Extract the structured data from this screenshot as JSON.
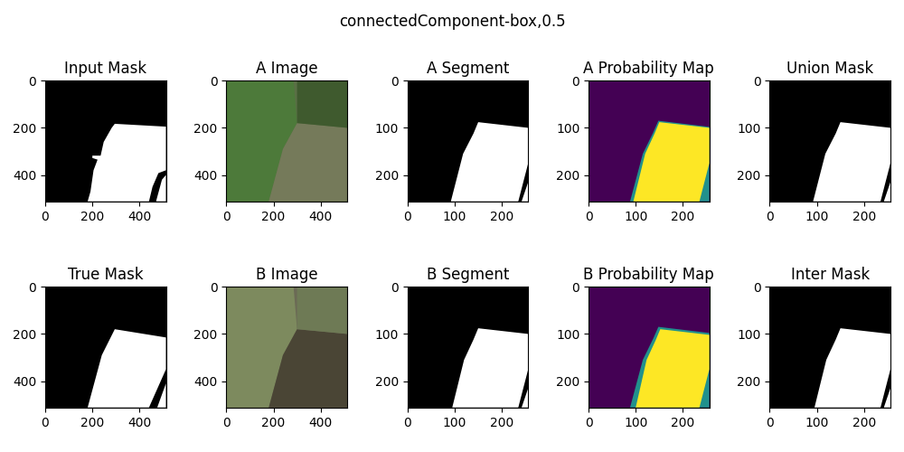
{
  "title": "connectedComponent-box,0.5",
  "chart_data": [
    {
      "type": "image",
      "title": "Input Mask",
      "color": "#000000",
      "xlim": [
        0,
        512
      ],
      "ylim": [
        512,
        0
      ],
      "xticks": [
        0,
        200,
        400
      ],
      "yticks": [
        0,
        200,
        400
      ],
      "regions": [
        {
          "color": "#ffffff",
          "points": [
            [
              295,
              183
            ],
            [
              512,
              195
            ],
            [
              512,
              380
            ],
            [
              480,
              392
            ],
            [
              455,
              450
            ],
            [
              440,
              512
            ],
            [
              180,
              512
            ],
            [
              192,
              470
            ],
            [
              205,
              380
            ],
            [
              222,
              335
            ],
            [
              200,
              328
            ],
            [
              200,
              318
            ],
            [
              235,
              318
            ],
            [
              248,
              260
            ],
            [
              282,
              200
            ]
          ]
        },
        {
          "color": "#ffffff",
          "points": [
            [
              470,
              512
            ],
            [
              495,
              420
            ],
            [
              512,
              400
            ],
            [
              512,
              512
            ]
          ]
        }
      ]
    },
    {
      "type": "image",
      "title": "A Image",
      "color": "#5a6f45",
      "xlim": [
        0,
        512
      ],
      "ylim": [
        512,
        0
      ],
      "xticks": [
        0,
        200,
        400
      ],
      "yticks": [
        0,
        200,
        400
      ],
      "regions": [
        {
          "color": "#4d7a3a",
          "points": [
            [
              0,
              0
            ],
            [
              285,
              0
            ],
            [
              300,
              180
            ],
            [
              240,
              290
            ],
            [
              180,
              512
            ],
            [
              0,
              512
            ]
          ]
        },
        {
          "color": "#757a5a",
          "points": [
            [
              300,
              180
            ],
            [
              512,
              200
            ],
            [
              512,
              512
            ],
            [
              180,
              512
            ],
            [
              240,
              290
            ]
          ]
        },
        {
          "color": "#3f5a2e",
          "points": [
            [
              300,
              0
            ],
            [
              512,
              0
            ],
            [
              512,
              200
            ],
            [
              300,
              180
            ]
          ]
        }
      ]
    },
    {
      "type": "image",
      "title": "A Segment",
      "color": "#000000",
      "xlim": [
        0,
        256
      ],
      "ylim": [
        256,
        0
      ],
      "xticks": [
        0,
        100,
        200
      ],
      "yticks": [
        0,
        100,
        200
      ],
      "regions": [
        {
          "color": "#ffffff",
          "points": [
            [
              150,
              88
            ],
            [
              256,
              100
            ],
            [
              256,
              175
            ],
            [
              235,
              256
            ],
            [
              92,
              256
            ],
            [
              118,
              155
            ],
            [
              140,
              112
            ]
          ]
        },
        {
          "color": "#ffffff",
          "points": [
            [
              242,
              256
            ],
            [
              256,
              215
            ],
            [
              256,
              256
            ]
          ]
        }
      ]
    },
    {
      "type": "image",
      "title": "A Probability Map",
      "color": "#440154",
      "xlim": [
        0,
        256
      ],
      "ylim": [
        256,
        0
      ],
      "xticks": [
        0,
        100,
        200
      ],
      "yticks": [
        0,
        100,
        200
      ],
      "regions": [
        {
          "color": "#21918c",
          "points": [
            [
              148,
              85
            ],
            [
              256,
              98
            ],
            [
              256,
              256
            ],
            [
              88,
              256
            ],
            [
              115,
              155
            ],
            [
              137,
              110
            ]
          ]
        },
        {
          "color": "#fde725",
          "points": [
            [
              150,
              88
            ],
            [
              256,
              100
            ],
            [
              256,
              175
            ],
            [
              235,
              256
            ],
            [
              95,
              256
            ],
            [
              120,
              155
            ],
            [
              140,
              112
            ]
          ]
        }
      ]
    },
    {
      "type": "image",
      "title": "Union Mask",
      "color": "#000000",
      "xlim": [
        0,
        256
      ],
      "ylim": [
        256,
        0
      ],
      "xticks": [
        0,
        100,
        200
      ],
      "yticks": [
        0,
        100,
        200
      ],
      "regions": [
        {
          "color": "#ffffff",
          "points": [
            [
              150,
              88
            ],
            [
              256,
              100
            ],
            [
              256,
              175
            ],
            [
              235,
              256
            ],
            [
              92,
              256
            ],
            [
              118,
              155
            ],
            [
              140,
              112
            ]
          ]
        },
        {
          "color": "#ffffff",
          "points": [
            [
              242,
              256
            ],
            [
              256,
              215
            ],
            [
              256,
              256
            ]
          ]
        }
      ]
    },
    {
      "type": "image",
      "title": "True Mask",
      "color": "#000000",
      "xlim": [
        0,
        512
      ],
      "ylim": [
        512,
        0
      ],
      "xticks": [
        0,
        200,
        400
      ],
      "yticks": [
        0,
        200,
        400
      ],
      "regions": [
        {
          "color": "#ffffff",
          "points": [
            [
              295,
              180
            ],
            [
              512,
              215
            ],
            [
              512,
              350
            ],
            [
              440,
              512
            ],
            [
              180,
              512
            ],
            [
              240,
              290
            ]
          ]
        },
        {
          "color": "#ffffff",
          "points": [
            [
              475,
              512
            ],
            [
              512,
              410
            ],
            [
              512,
              512
            ]
          ]
        }
      ]
    },
    {
      "type": "image",
      "title": "B Image",
      "color": "#6b6a55",
      "xlim": [
        0,
        512
      ],
      "ylim": [
        512,
        0
      ],
      "xticks": [
        0,
        200,
        400
      ],
      "yticks": [
        0,
        200,
        400
      ],
      "regions": [
        {
          "color": "#7d8a5e",
          "points": [
            [
              0,
              0
            ],
            [
              285,
              0
            ],
            [
              300,
              180
            ],
            [
              240,
              290
            ],
            [
              180,
              512
            ],
            [
              0,
              512
            ]
          ]
        },
        {
          "color": "#4a4535",
          "points": [
            [
              300,
              180
            ],
            [
              512,
              200
            ],
            [
              512,
              512
            ],
            [
              180,
              512
            ],
            [
              240,
              290
            ]
          ]
        },
        {
          "color": "#6e7a55",
          "points": [
            [
              300,
              0
            ],
            [
              512,
              0
            ],
            [
              512,
              200
            ],
            [
              300,
              180
            ]
          ]
        }
      ]
    },
    {
      "type": "image",
      "title": "B Segment",
      "color": "#000000",
      "xlim": [
        0,
        256
      ],
      "ylim": [
        256,
        0
      ],
      "xticks": [
        0,
        100,
        200
      ],
      "yticks": [
        0,
        100,
        200
      ],
      "regions": [
        {
          "color": "#ffffff",
          "points": [
            [
              150,
              88
            ],
            [
              256,
              100
            ],
            [
              256,
              175
            ],
            [
              235,
              256
            ],
            [
              95,
              256
            ],
            [
              120,
              155
            ],
            [
              140,
              112
            ]
          ]
        },
        {
          "color": "#ffffff",
          "points": [
            [
              242,
              256
            ],
            [
              256,
              215
            ],
            [
              256,
              256
            ]
          ]
        }
      ]
    },
    {
      "type": "image",
      "title": "B Probability Map",
      "color": "#440154",
      "xlim": [
        0,
        256
      ],
      "ylim": [
        256,
        0
      ],
      "xticks": [
        0,
        100,
        200
      ],
      "yticks": [
        0,
        100,
        200
      ],
      "regions": [
        {
          "color": "#21918c",
          "points": [
            [
              148,
              85
            ],
            [
              256,
              98
            ],
            [
              256,
              256
            ],
            [
              88,
              256
            ],
            [
              115,
              155
            ],
            [
              137,
              110
            ]
          ]
        },
        {
          "color": "#fde725",
          "points": [
            [
              152,
              90
            ],
            [
              256,
              102
            ],
            [
              256,
              175
            ],
            [
              235,
              256
            ],
            [
              100,
              256
            ],
            [
              123,
              155
            ],
            [
              142,
              114
            ]
          ]
        }
      ]
    },
    {
      "type": "image",
      "title": "Inter Mask",
      "color": "#000000",
      "xlim": [
        0,
        256
      ],
      "ylim": [
        256,
        0
      ],
      "xticks": [
        0,
        100,
        200
      ],
      "yticks": [
        0,
        100,
        200
      ],
      "regions": [
        {
          "color": "#ffffff",
          "points": [
            [
              150,
              88
            ],
            [
              256,
              100
            ],
            [
              256,
              175
            ],
            [
              235,
              256
            ],
            [
              95,
              256
            ],
            [
              120,
              155
            ],
            [
              140,
              112
            ]
          ]
        },
        {
          "color": "#ffffff",
          "points": [
            [
              242,
              256
            ],
            [
              256,
              215
            ],
            [
              256,
              256
            ]
          ]
        }
      ]
    }
  ]
}
